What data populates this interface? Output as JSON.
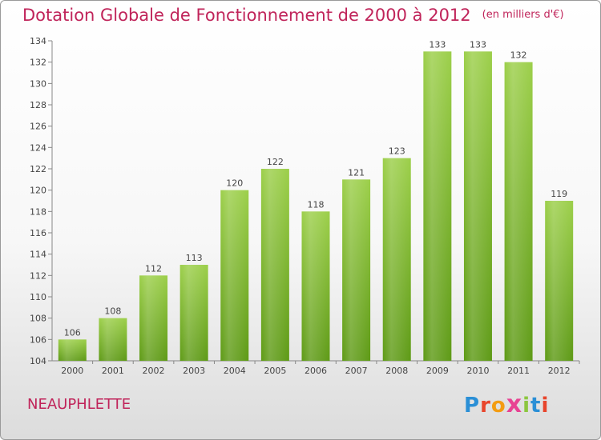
{
  "header": {
    "title": "Dotation Globale de Fonctionnement de 2000 à 2012",
    "unit": "(en milliers d'€)"
  },
  "footer": {
    "commune": "NEAUPHLETTE",
    "logo_letters": [
      "P",
      "r",
      "o",
      "x",
      "i",
      "t",
      "i"
    ],
    "logo_colors": [
      "#2a8fd6",
      "#e8452c",
      "#f39c12",
      "#e84393",
      "#8cc63f",
      "#2a8fd6",
      "#e8452c"
    ]
  },
  "chart_data": {
    "type": "bar",
    "title": "Dotation Globale de Fonctionnement de 2000 à 2012",
    "subtitle": "(en milliers d'€)",
    "xlabel": "",
    "ylabel": "",
    "categories": [
      "2000",
      "2001",
      "2002",
      "2003",
      "2004",
      "2005",
      "2006",
      "2007",
      "2008",
      "2009",
      "2010",
      "2011",
      "2012"
    ],
    "values": [
      106,
      108,
      112,
      113,
      120,
      122,
      118,
      121,
      123,
      133,
      133,
      132,
      119
    ],
    "ylim": [
      104,
      134
    ],
    "yticks": [
      "104",
      "106",
      "108",
      "110",
      "112",
      "114",
      "116",
      "118",
      "120",
      "122",
      "124",
      "126",
      "128",
      "130",
      "132",
      "134"
    ],
    "grid": false,
    "legend": "none",
    "colors": {
      "bar_top": "#9ccf4a",
      "bar_bottom": "#5e9a16",
      "label": "#444444",
      "axis": "#888888"
    }
  }
}
